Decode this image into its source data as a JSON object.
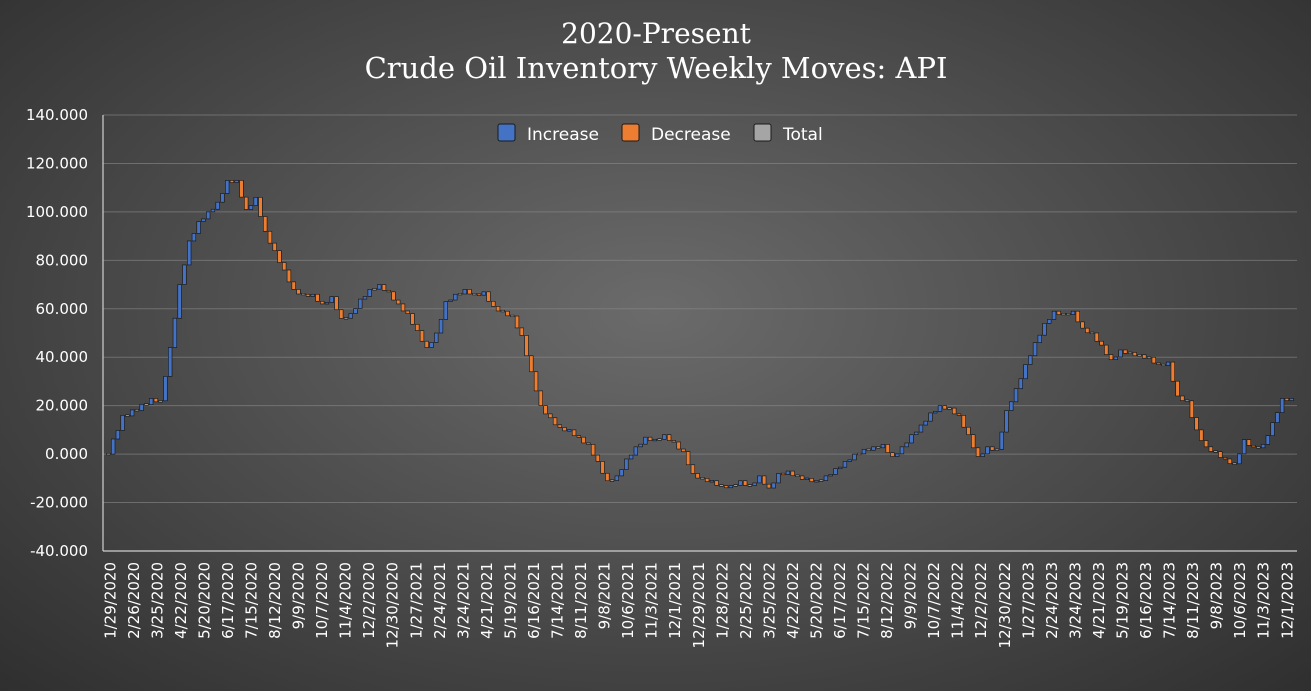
{
  "chart_data": {
    "type": "bar",
    "subtype": "waterfall",
    "title_line1": "2020-Present",
    "title_line2": "Crude Oil Inventory Weekly Moves:  API",
    "ylim": [
      -40,
      140
    ],
    "yticks": [
      140,
      120,
      100,
      80,
      60,
      40,
      20,
      0,
      -20,
      -40
    ],
    "ytick_labels": [
      "140.000",
      "120.000",
      "100.000",
      "80.000",
      "60.000",
      "40.000",
      "20.000",
      "0.000",
      "-20.000",
      "-40.000"
    ],
    "xtick_labels": [
      "1/29/2020",
      "2/26/2020",
      "3/25/2020",
      "4/22/2020",
      "5/20/2020",
      "6/17/2020",
      "7/15/2020",
      "8/12/2020",
      "9/9/2020",
      "10/7/2020",
      "11/4/2020",
      "12/2/2020",
      "12/30/2020",
      "1/27/2021",
      "2/24/2021",
      "3/24/2021",
      "4/21/2021",
      "5/19/2021",
      "6/16/2021",
      "7/14/2021",
      "8/11/2021",
      "9/8/2021",
      "10/6/2021",
      "11/3/2021",
      "12/1/2021",
      "12/29/2021",
      "1/28/2022",
      "2/25/2022",
      "3/25/2022",
      "4/22/2022",
      "5/20/2022",
      "6/17/2022",
      "7/15/2022",
      "8/12/2022",
      "9/9/2022",
      "10/7/2022",
      "11/4/2022",
      "12/2/2022",
      "12/30/2022",
      "1/27/2023",
      "2/24/2023",
      "3/24/2023",
      "4/21/2023",
      "5/19/2023",
      "6/16/2023",
      "7/14/2023",
      "8/11/2023",
      "9/8/2023",
      "10/6/2023",
      "11/3/2023",
      "12/1/2023"
    ],
    "legend": [
      {
        "name": "Increase",
        "color": "#4472c4"
      },
      {
        "name": "Decrease",
        "color": "#ed7d31"
      },
      {
        "name": "Total",
        "color": "#a5a5a5"
      }
    ],
    "legend_position": "top-center",
    "level_path": [
      [
        0,
        0
      ],
      [
        3,
        16
      ],
      [
        6,
        18
      ],
      [
        9,
        23
      ],
      [
        11,
        22
      ],
      [
        13,
        44
      ],
      [
        15,
        70
      ],
      [
        17,
        88
      ],
      [
        19,
        96
      ],
      [
        21,
        100
      ],
      [
        23,
        104
      ],
      [
        25,
        113
      ],
      [
        27,
        113
      ],
      [
        29,
        101
      ],
      [
        31,
        106
      ],
      [
        33,
        92
      ],
      [
        35,
        84
      ],
      [
        37,
        76
      ],
      [
        39,
        68
      ],
      [
        41,
        66
      ],
      [
        43,
        66
      ],
      [
        45,
        62
      ],
      [
        47,
        65
      ],
      [
        49,
        56
      ],
      [
        51,
        58
      ],
      [
        53,
        64
      ],
      [
        55,
        68
      ],
      [
        57,
        70
      ],
      [
        59,
        67
      ],
      [
        61,
        62
      ],
      [
        63,
        58
      ],
      [
        65,
        51
      ],
      [
        67,
        44
      ],
      [
        69,
        50
      ],
      [
        71,
        63
      ],
      [
        73,
        66
      ],
      [
        75,
        68
      ],
      [
        77,
        66
      ],
      [
        79,
        67
      ],
      [
        81,
        61
      ],
      [
        83,
        59
      ],
      [
        85,
        57
      ],
      [
        87,
        49
      ],
      [
        89,
        34
      ],
      [
        91,
        20
      ],
      [
        93,
        15
      ],
      [
        95,
        11
      ],
      [
        97,
        10
      ],
      [
        99,
        7
      ],
      [
        101,
        4
      ],
      [
        103,
        -3
      ],
      [
        105,
        -11
      ],
      [
        107,
        -9
      ],
      [
        109,
        -2
      ],
      [
        111,
        3
      ],
      [
        113,
        7
      ],
      [
        115,
        6
      ],
      [
        117,
        8
      ],
      [
        119,
        5
      ],
      [
        121,
        1
      ],
      [
        123,
        -8
      ],
      [
        125,
        -10
      ],
      [
        127,
        -11
      ],
      [
        129,
        -13
      ],
      [
        131,
        -13
      ],
      [
        133,
        -11
      ],
      [
        135,
        -13
      ],
      [
        137,
        -9
      ],
      [
        139,
        -14
      ],
      [
        141,
        -8
      ],
      [
        143,
        -7
      ],
      [
        145,
        -9
      ],
      [
        147,
        -10
      ],
      [
        149,
        -11
      ],
      [
        151,
        -9
      ],
      [
        153,
        -6
      ],
      [
        155,
        -3
      ],
      [
        157,
        0
      ],
      [
        159,
        2
      ],
      [
        161,
        3
      ],
      [
        163,
        4
      ],
      [
        165,
        -1
      ],
      [
        167,
        3
      ],
      [
        169,
        8
      ],
      [
        171,
        12
      ],
      [
        173,
        17
      ],
      [
        175,
        20
      ],
      [
        177,
        19
      ],
      [
        179,
        16
      ],
      [
        181,
        8
      ],
      [
        183,
        -1
      ],
      [
        185,
        3
      ],
      [
        187,
        2
      ],
      [
        189,
        18
      ],
      [
        191,
        27
      ],
      [
        193,
        37
      ],
      [
        195,
        46
      ],
      [
        197,
        54
      ],
      [
        199,
        59
      ],
      [
        201,
        58
      ],
      [
        203,
        59
      ],
      [
        205,
        52
      ],
      [
        207,
        50
      ],
      [
        209,
        45
      ],
      [
        211,
        39
      ],
      [
        213,
        43
      ],
      [
        215,
        42
      ],
      [
        217,
        41
      ],
      [
        219,
        40
      ],
      [
        221,
        37
      ],
      [
        223,
        38
      ],
      [
        225,
        24
      ],
      [
        227,
        22
      ],
      [
        229,
        10
      ],
      [
        231,
        3
      ],
      [
        233,
        1
      ],
      [
        235,
        -2
      ],
      [
        237,
        -4
      ],
      [
        239,
        6
      ],
      [
        241,
        3
      ],
      [
        243,
        4
      ],
      [
        245,
        13
      ],
      [
        247,
        23
      ],
      [
        249,
        23
      ]
    ]
  }
}
